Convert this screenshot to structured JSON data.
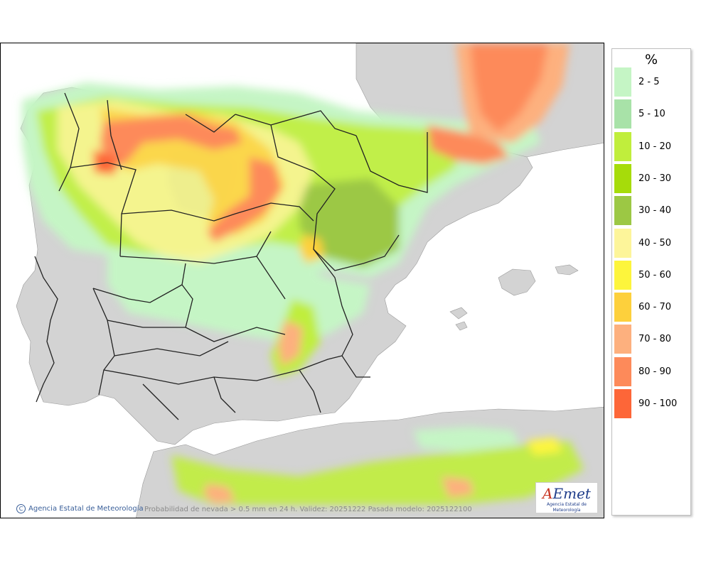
{
  "legend": {
    "title": "%",
    "classes": [
      {
        "label": "2 - 5",
        "color": "#c5f5c5"
      },
      {
        "label": "5 - 10",
        "color": "#a8e2a8"
      },
      {
        "label": "10 - 20",
        "color": "#c0ee3c"
      },
      {
        "label": "20 - 30",
        "color": "#a6dc0a"
      },
      {
        "label": "30 - 40",
        "color": "#9cc844"
      },
      {
        "label": "40 - 50",
        "color": "#fdf59a"
      },
      {
        "label": "50 - 60",
        "color": "#fdf53c"
      },
      {
        "label": "60 - 70",
        "color": "#fdd03c"
      },
      {
        "label": "70 - 80",
        "color": "#fdb07e"
      },
      {
        "label": "80 - 90",
        "color": "#fd8a5a"
      },
      {
        "label": "90 - 100",
        "color": "#fd6638"
      }
    ]
  },
  "map": {
    "credit": "Agencia Estatal de Meteorología",
    "caption": "Probabilidad de nevada > 0.5 mm en 24 h. Validez: 20251222 Pasada modelo: 2025122100",
    "logo_text": "AEmet",
    "logo_subtitle": "Agencia Estatal de Meteorología",
    "colors": {
      "sea": "#ffffff",
      "land": "#d0d0d0",
      "border": "#222222"
    }
  }
}
